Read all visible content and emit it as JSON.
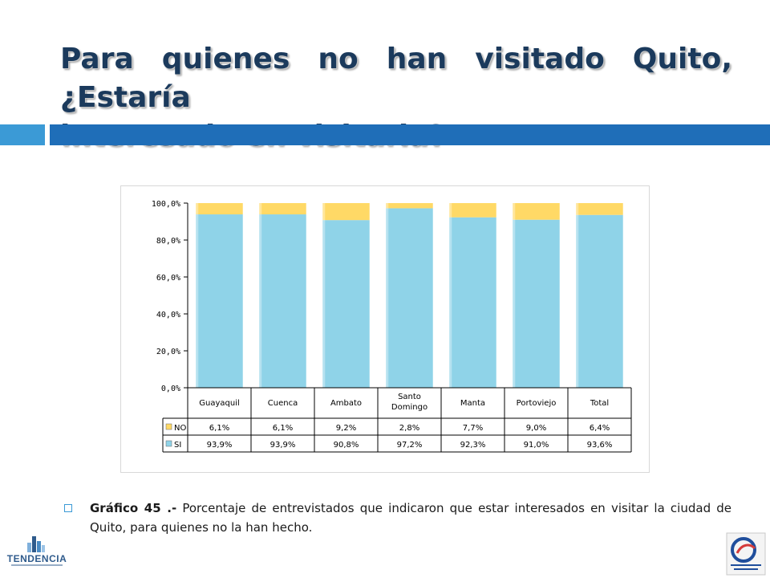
{
  "slide": {
    "title_line1": "Para quienes no han visitado Quito, ¿Estaría",
    "title_line2": "interesado en visitarla?",
    "caption_bold": "Gráfico 45 .-",
    "caption_text": " Porcentaje de entrevistados que indicaron que estar interesados en visitar la ciudad de Quito, para quienes no la han hecho.",
    "logo_left_text": "TENDENCIA"
  },
  "colors": {
    "title": "#1b3a5c",
    "accent_light": "#3b9ad6",
    "accent_dark": "#1f6eb8",
    "si": "#8fd3e8",
    "no": "#ffd966"
  },
  "chart_data": {
    "type": "bar",
    "stacked": true,
    "categories": [
      "Guayaquil",
      "Cuenca",
      "Ambato",
      "Santo Domingo",
      "Manta",
      "Portoviejo",
      "Total"
    ],
    "series": [
      {
        "name": "SI",
        "values": [
          93.9,
          93.9,
          90.8,
          97.2,
          92.3,
          91.0,
          93.6
        ],
        "labels": [
          "93,9%",
          "93,9%",
          "90,8%",
          "97,2%",
          "92,3%",
          "91,0%",
          "93,6%"
        ]
      },
      {
        "name": "NO",
        "values": [
          6.1,
          6.1,
          9.2,
          2.8,
          7.7,
          9.0,
          6.4
        ],
        "labels": [
          "6,1%",
          "6,1%",
          "9,2%",
          "2,8%",
          "7,7%",
          "9,0%",
          "6,4%"
        ]
      }
    ],
    "y_ticks": [
      "0,0%",
      "20,0%",
      "40,0%",
      "60,0%",
      "80,0%",
      "100,0%"
    ],
    "ylim": [
      0,
      100
    ],
    "grid": false,
    "legend": "data-table",
    "title": "",
    "xlabel": "",
    "ylabel": ""
  }
}
